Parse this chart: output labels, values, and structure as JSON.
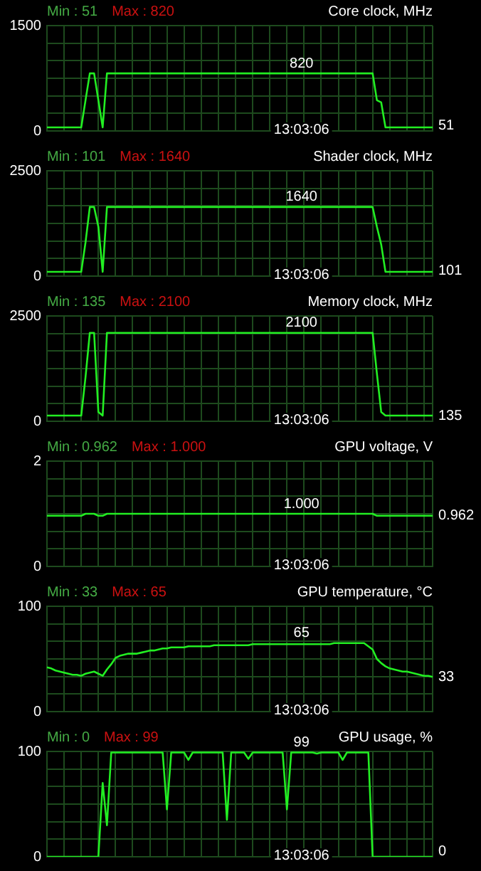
{
  "chart_data": [
    {
      "type": "line",
      "title": "Core clock, MHz",
      "tick_labels": "y",
      "grid": true,
      "color": "#22ee22",
      "ylim": [
        0,
        1500
      ],
      "yticks": [
        0,
        {
          "value": 250,
          "label": null
        },
        {
          "value": 500,
          "label": null
        },
        {
          "value": 750,
          "label": null
        },
        {
          "value": 1000,
          "label": null
        },
        {
          "value": 1250,
          "label": null
        },
        1500
      ],
      "annotations": [
        "Min : 51",
        "Max : 820",
        {
          "text": "820",
          "y": 820
        },
        "51",
        "13:03:06"
      ],
      "categories": [
        null,
        null,
        null,
        null,
        null,
        null,
        null,
        null,
        null,
        null,
        null,
        null,
        null,
        null,
        null,
        null,
        null,
        null,
        null,
        null,
        null,
        null,
        null,
        null,
        null,
        null,
        null,
        null,
        null,
        null,
        null,
        null,
        null,
        null,
        null,
        null,
        null,
        null,
        null,
        null,
        null,
        null,
        null,
        null,
        null,
        null,
        null,
        null,
        null,
        null,
        null,
        null,
        null,
        null,
        null,
        null,
        null,
        null,
        null,
        null,
        null,
        null,
        null,
        null,
        null,
        null,
        null,
        null,
        null,
        null,
        null,
        null,
        null,
        null,
        null,
        null,
        null,
        null,
        null,
        null,
        null,
        null,
        null,
        null,
        null,
        null,
        null,
        null,
        null,
        null,
        null
      ],
      "values": [
        51,
        51,
        51,
        51,
        51,
        51,
        51,
        51,
        51,
        437,
        820,
        820,
        437,
        51,
        820,
        820,
        820,
        820,
        820,
        820,
        820,
        820,
        820,
        820,
        820,
        820,
        820,
        820,
        820,
        820,
        820,
        820,
        820,
        820,
        820,
        820,
        820,
        820,
        820,
        820,
        820,
        820,
        820,
        820,
        820,
        820,
        820,
        820,
        820,
        820,
        820,
        820,
        820,
        820,
        820,
        820,
        820,
        820,
        820,
        820,
        820,
        820,
        820,
        820,
        820,
        820,
        820,
        820,
        820,
        820,
        820,
        820,
        820,
        820,
        820,
        820,
        820,
        437,
        406,
        51,
        51,
        51,
        51,
        51,
        51,
        51,
        51,
        51,
        51,
        51,
        51
      ]
    },
    {
      "type": "line",
      "title": "Shader clock, MHz",
      "tick_labels": "y",
      "grid": true,
      "color": "#22ee22",
      "ylim": [
        0,
        2500
      ],
      "yticks": [
        0,
        {
          "value": 416.7,
          "label": null
        },
        {
          "value": 833.3,
          "label": null
        },
        {
          "value": 1250,
          "label": null
        },
        {
          "value": 1666.7,
          "label": null
        },
        {
          "value": 2083.3,
          "label": null
        },
        2500
      ],
      "annotations": [
        "Min : 101",
        "Max : 1640",
        {
          "text": "1640",
          "y": 1640
        },
        "101",
        "13:03:06"
      ],
      "categories": [
        null,
        null,
        null,
        null,
        null,
        null,
        null,
        null,
        null,
        null,
        null,
        null,
        null,
        null,
        null,
        null,
        null,
        null,
        null,
        null,
        null,
        null,
        null,
        null,
        null,
        null,
        null,
        null,
        null,
        null,
        null,
        null,
        null,
        null,
        null,
        null,
        null,
        null,
        null,
        null,
        null,
        null,
        null,
        null,
        null,
        null,
        null,
        null,
        null,
        null,
        null,
        null,
        null,
        null,
        null,
        null,
        null,
        null,
        null,
        null,
        null,
        null,
        null,
        null,
        null,
        null,
        null,
        null,
        null,
        null,
        null,
        null,
        null,
        null,
        null,
        null,
        null,
        null,
        null,
        null,
        null,
        null,
        null,
        null,
        null,
        null,
        null,
        null,
        null,
        null,
        null
      ],
      "values": [
        101,
        101,
        101,
        101,
        101,
        101,
        101,
        101,
        101,
        800,
        1640,
        1640,
        1170,
        101,
        1640,
        1640,
        1640,
        1640,
        1640,
        1640,
        1640,
        1640,
        1640,
        1640,
        1640,
        1640,
        1640,
        1640,
        1640,
        1640,
        1640,
        1640,
        1640,
        1640,
        1640,
        1640,
        1640,
        1640,
        1640,
        1640,
        1640,
        1640,
        1640,
        1640,
        1640,
        1640,
        1640,
        1640,
        1640,
        1640,
        1640,
        1640,
        1640,
        1640,
        1640,
        1640,
        1640,
        1640,
        1640,
        1640,
        1640,
        1640,
        1640,
        1640,
        1640,
        1640,
        1640,
        1640,
        1640,
        1640,
        1640,
        1640,
        1640,
        1640,
        1640,
        1640,
        1640,
        1170,
        750,
        101,
        101,
        101,
        101,
        101,
        101,
        101,
        101,
        101,
        101,
        101,
        101
      ]
    },
    {
      "type": "line",
      "title": "Memory clock, MHz",
      "tick_labels": "y",
      "grid": true,
      "color": "#22ee22",
      "ylim": [
        0,
        2500
      ],
      "yticks": [
        0,
        {
          "value": 416.7,
          "label": null
        },
        {
          "value": 833.3,
          "label": null
        },
        {
          "value": 1250,
          "label": null
        },
        {
          "value": 1666.7,
          "label": null
        },
        {
          "value": 2083.3,
          "label": null
        },
        2500
      ],
      "annotations": [
        "Min : 135",
        "Max : 2100",
        {
          "text": "2100",
          "y": 2100
        },
        "135",
        "13:03:06"
      ],
      "categories": [
        null,
        null,
        null,
        null,
        null,
        null,
        null,
        null,
        null,
        null,
        null,
        null,
        null,
        null,
        null,
        null,
        null,
        null,
        null,
        null,
        null,
        null,
        null,
        null,
        null,
        null,
        null,
        null,
        null,
        null,
        null,
        null,
        null,
        null,
        null,
        null,
        null,
        null,
        null,
        null,
        null,
        null,
        null,
        null,
        null,
        null,
        null,
        null,
        null,
        null,
        null,
        null,
        null,
        null,
        null,
        null,
        null,
        null,
        null,
        null,
        null,
        null,
        null,
        null,
        null,
        null,
        null,
        null,
        null,
        null,
        null,
        null,
        null,
        null,
        null,
        null,
        null,
        null,
        null,
        null,
        null,
        null,
        null,
        null,
        null,
        null,
        null,
        null,
        null,
        null,
        null
      ],
      "values": [
        135,
        135,
        135,
        135,
        135,
        135,
        135,
        135,
        135,
        1050,
        2100,
        2100,
        220,
        135,
        2100,
        2100,
        2100,
        2100,
        2100,
        2100,
        2100,
        2100,
        2100,
        2100,
        2100,
        2100,
        2100,
        2100,
        2100,
        2100,
        2100,
        2100,
        2100,
        2100,
        2100,
        2100,
        2100,
        2100,
        2100,
        2100,
        2100,
        2100,
        2100,
        2100,
        2100,
        2100,
        2100,
        2100,
        2100,
        2100,
        2100,
        2100,
        2100,
        2100,
        2100,
        2100,
        2100,
        2100,
        2100,
        2100,
        2100,
        2100,
        2100,
        2100,
        2100,
        2100,
        2100,
        2100,
        2100,
        2100,
        2100,
        2100,
        2100,
        2100,
        2100,
        2100,
        2100,
        1130,
        220,
        135,
        135,
        135,
        135,
        135,
        135,
        135,
        135,
        135,
        135,
        135,
        135
      ]
    },
    {
      "type": "line",
      "title": "GPU voltage, V",
      "tick_labels": "y",
      "grid": true,
      "color": "#22ee22",
      "ylim": [
        0,
        2
      ],
      "yticks": [
        0,
        {
          "value": 0.333,
          "label": null
        },
        {
          "value": 0.667,
          "label": null
        },
        {
          "value": 1,
          "label": null
        },
        {
          "value": 1.333,
          "label": null
        },
        {
          "value": 1.667,
          "label": null
        },
        2
      ],
      "annotations": [
        "Min : 0.962",
        "Max : 1.000",
        {
          "text": "1.000",
          "y": 1
        },
        "0.962",
        "13:03:06"
      ],
      "categories": [
        null,
        null,
        null,
        null,
        null,
        null,
        null,
        null,
        null,
        null,
        null,
        null,
        null,
        null,
        null,
        null,
        null,
        null,
        null,
        null,
        null,
        null,
        null,
        null,
        null,
        null,
        null,
        null,
        null,
        null,
        null,
        null,
        null,
        null,
        null,
        null,
        null,
        null,
        null,
        null,
        null,
        null,
        null,
        null,
        null,
        null,
        null,
        null,
        null,
        null,
        null,
        null,
        null,
        null,
        null,
        null,
        null,
        null,
        null,
        null,
        null,
        null,
        null,
        null,
        null,
        null,
        null,
        null,
        null,
        null,
        null,
        null,
        null,
        null,
        null,
        null,
        null,
        null,
        null,
        null,
        null,
        null,
        null,
        null,
        null,
        null,
        null,
        null,
        null,
        null,
        null
      ],
      "values": [
        0.962,
        0.962,
        0.962,
        0.962,
        0.962,
        0.962,
        0.962,
        0.962,
        0.962,
        1,
        1,
        1,
        0.962,
        0.962,
        1,
        1,
        1,
        1,
        1,
        1,
        1,
        1,
        1,
        1,
        1,
        1,
        1,
        1,
        1,
        1,
        1,
        1,
        1,
        1,
        1,
        1,
        1,
        1,
        1,
        1,
        1,
        1,
        1,
        1,
        1,
        1,
        1,
        1,
        1,
        1,
        1,
        1,
        1,
        1,
        1,
        1,
        1,
        1,
        1,
        1,
        1,
        1,
        1,
        1,
        1,
        1,
        1,
        1,
        1,
        1,
        1,
        1,
        1,
        1,
        1,
        1,
        1,
        0.962,
        0.962,
        0.962,
        0.962,
        0.962,
        0.962,
        0.962,
        0.962,
        0.962,
        0.962,
        0.962,
        0.962,
        0.962,
        0.962
      ]
    },
    {
      "type": "line",
      "title": "GPU temperature, °C",
      "tick_labels": "y",
      "grid": true,
      "color": "#22ee22",
      "ylim": [
        0,
        100
      ],
      "yticks": [
        0,
        {
          "value": 16.7,
          "label": null
        },
        {
          "value": 33.3,
          "label": null
        },
        {
          "value": 50,
          "label": null
        },
        {
          "value": 66.7,
          "label": null
        },
        {
          "value": 83.3,
          "label": null
        },
        100
      ],
      "annotations": [
        "Min : 33",
        "Max : 65",
        {
          "text": "65",
          "y": 65
        },
        "33",
        "13:03:06"
      ],
      "categories": [
        null,
        null,
        null,
        null,
        null,
        null,
        null,
        null,
        null,
        null,
        null,
        null,
        null,
        null,
        null,
        null,
        null,
        null,
        null,
        null,
        null,
        null,
        null,
        null,
        null,
        null,
        null,
        null,
        null,
        null,
        null,
        null,
        null,
        null,
        null,
        null,
        null,
        null,
        null,
        null,
        null,
        null,
        null,
        null,
        null,
        null,
        null,
        null,
        null,
        null,
        null,
        null,
        null,
        null,
        null,
        null,
        null,
        null,
        null,
        null,
        null,
        null,
        null,
        null,
        null,
        null,
        null,
        null,
        null,
        null,
        null,
        null,
        null,
        null,
        null,
        null,
        null,
        null,
        null,
        null,
        null,
        null,
        null,
        null,
        null,
        null,
        null,
        null,
        null,
        null,
        null
      ],
      "values": [
        42,
        41,
        39,
        38,
        37,
        36,
        35,
        35,
        34,
        36,
        37,
        38,
        36,
        34,
        40,
        45,
        51,
        53,
        54,
        55,
        55,
        55,
        56,
        57,
        58,
        58,
        59,
        60,
        60,
        61,
        61,
        61,
        61,
        62,
        62,
        62,
        62,
        62,
        62,
        63,
        63,
        63,
        63,
        63,
        63,
        63,
        63,
        63,
        64,
        64,
        64,
        64,
        64,
        64,
        64,
        64,
        64,
        64,
        64,
        64,
        64,
        64,
        64,
        64,
        64,
        64,
        64,
        65,
        65,
        65,
        65,
        65,
        65,
        65,
        65,
        62,
        59,
        50,
        46,
        43,
        41,
        40,
        39,
        38,
        38,
        37,
        36,
        35,
        34,
        34,
        33
      ]
    },
    {
      "type": "line",
      "title": "GPU usage, %",
      "tick_labels": "y",
      "grid": true,
      "color": "#22ee22",
      "ylim": [
        0,
        100
      ],
      "yticks": [
        0,
        {
          "value": 16.7,
          "label": null
        },
        {
          "value": 33.3,
          "label": null
        },
        {
          "value": 50,
          "label": null
        },
        {
          "value": 66.7,
          "label": null
        },
        {
          "value": 83.3,
          "label": null
        },
        100
      ],
      "annotations": [
        "Min : 0",
        "Max : 99",
        {
          "text": "99",
          "y": 99
        },
        "0",
        "13:03:06"
      ],
      "categories": [
        null,
        null,
        null,
        null,
        null,
        null,
        null,
        null,
        null,
        null,
        null,
        null,
        null,
        null,
        null,
        null,
        null,
        null,
        null,
        null,
        null,
        null,
        null,
        null,
        null,
        null,
        null,
        null,
        null,
        null,
        null,
        null,
        null,
        null,
        null,
        null,
        null,
        null,
        null,
        null,
        null,
        null,
        null,
        null,
        null,
        null,
        null,
        null,
        null,
        null,
        null,
        null,
        null,
        null,
        null,
        null,
        null,
        null,
        null,
        null,
        null,
        null,
        null,
        null,
        null,
        null,
        null,
        null,
        null,
        null,
        null,
        null,
        null,
        null,
        null,
        null,
        null,
        null,
        null,
        null,
        null,
        null,
        null,
        null,
        null,
        null,
        null,
        null,
        null,
        null,
        null
      ],
      "values": [
        0,
        0,
        0,
        0,
        0,
        0,
        0,
        0,
        0,
        0,
        0,
        0,
        0,
        70,
        30,
        99,
        99,
        99,
        99,
        99,
        99,
        99,
        99,
        99,
        99,
        99,
        99,
        99,
        45,
        99,
        99,
        99,
        99,
        92,
        99,
        99,
        99,
        99,
        99,
        99,
        99,
        99,
        35,
        99,
        99,
        99,
        99,
        93,
        99,
        99,
        99,
        99,
        99,
        99,
        99,
        99,
        45,
        99,
        99,
        99,
        99,
        99,
        99,
        98,
        99,
        99,
        99,
        99,
        99,
        92,
        99,
        99,
        99,
        99,
        99,
        99,
        0,
        0,
        0,
        0,
        0,
        0,
        0,
        0,
        0,
        0,
        0,
        0,
        0,
        0,
        0
      ]
    }
  ]
}
